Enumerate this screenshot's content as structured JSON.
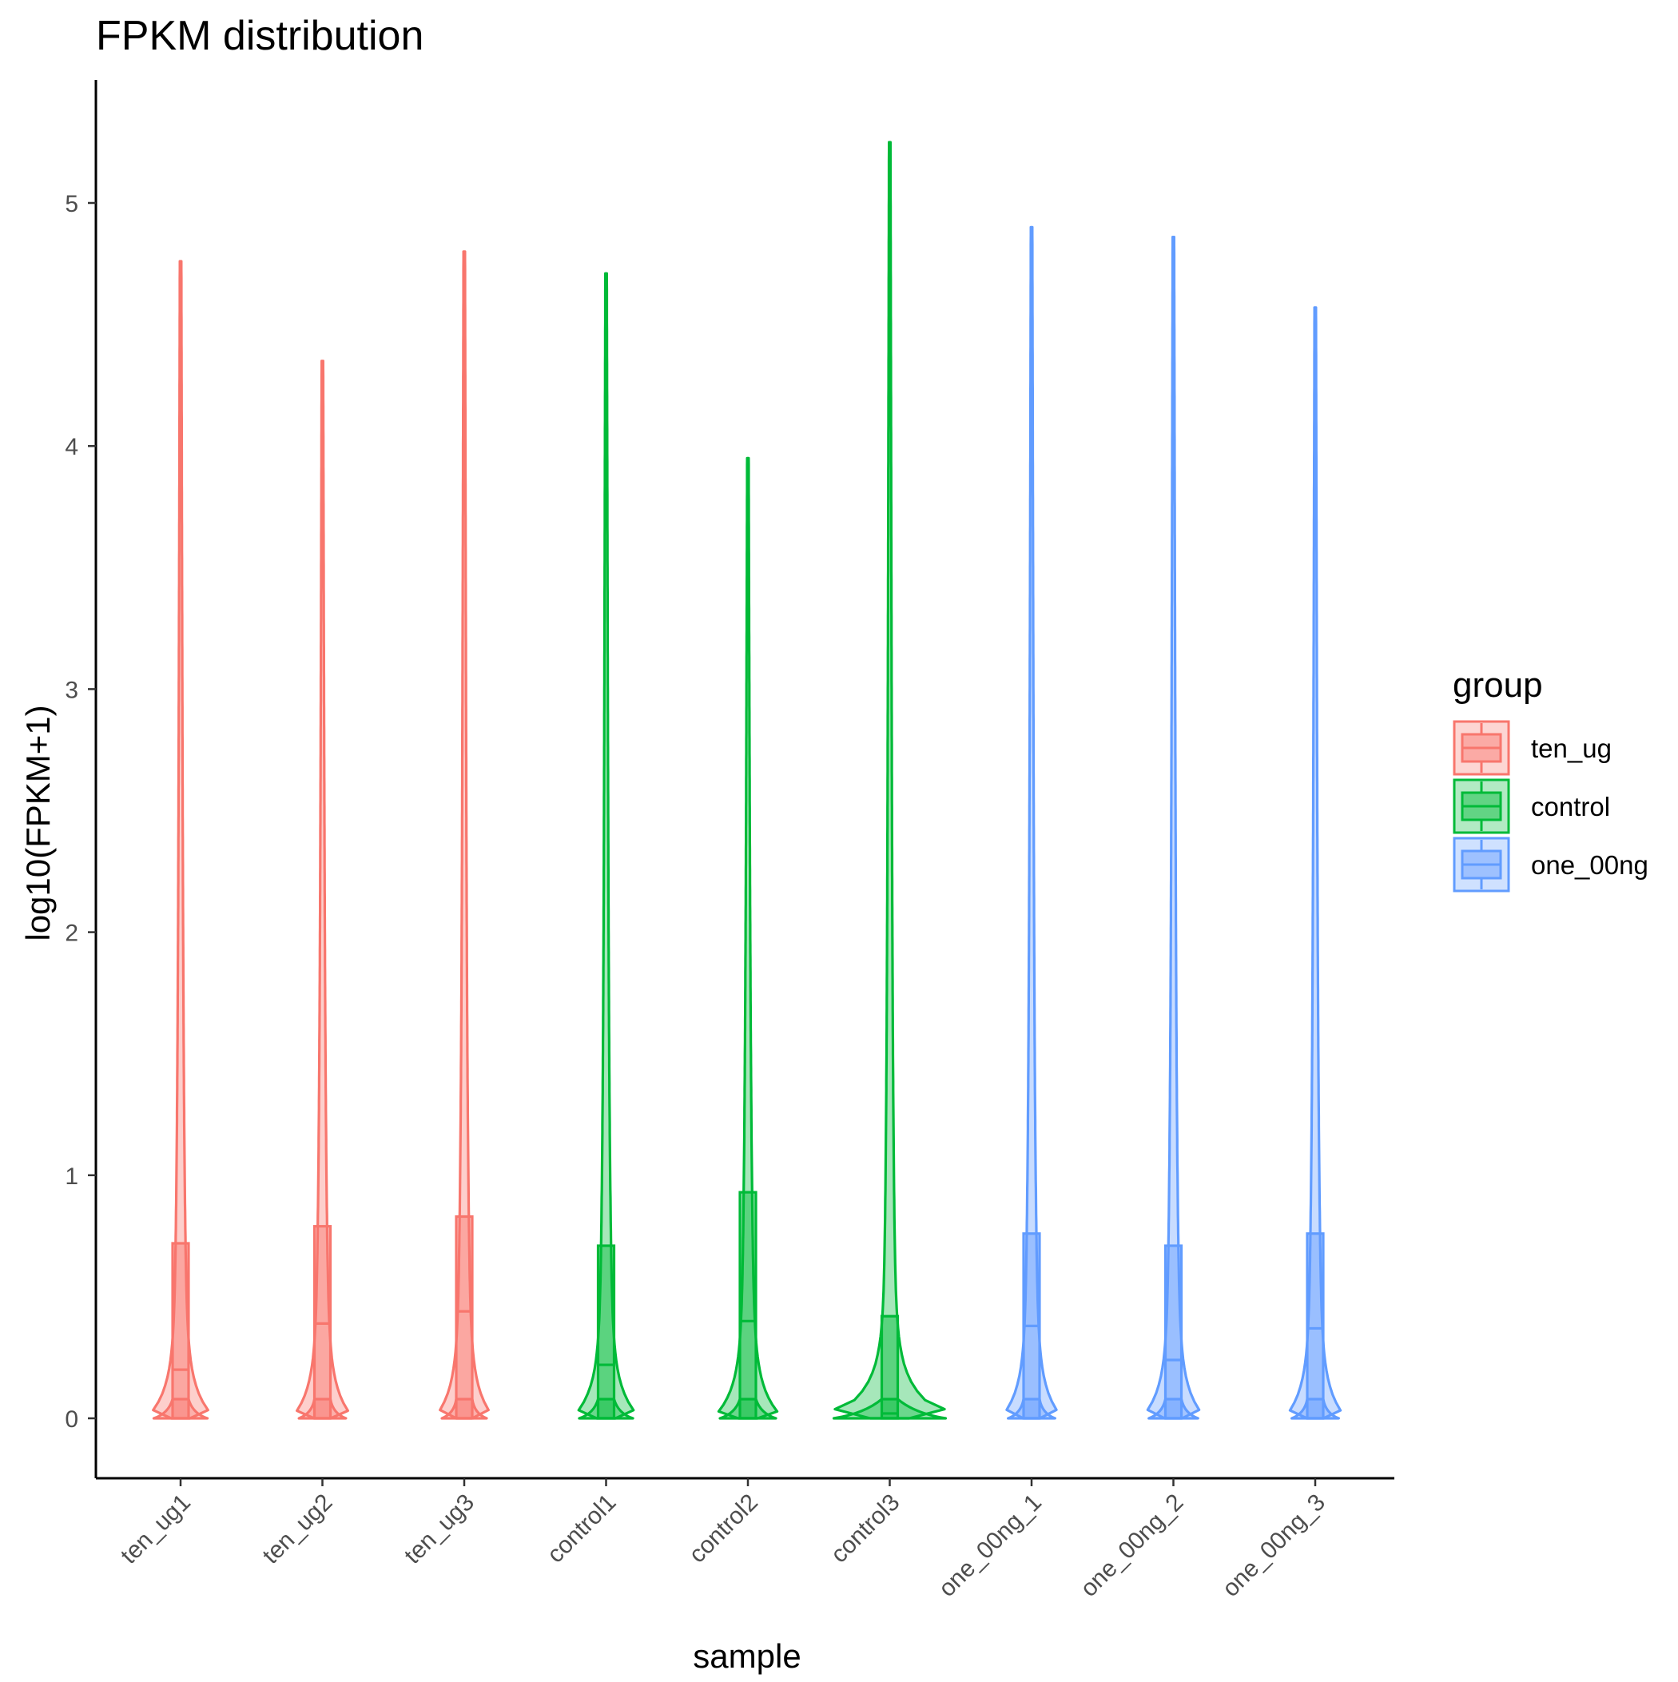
{
  "chart_data": {
    "type": "violin",
    "title": "FPKM distribution",
    "xlabel": "sample",
    "ylabel": "log10(FPKM+1)",
    "ylim": [
      -0.26,
      5.5
    ],
    "yticks": [
      0,
      1,
      2,
      3,
      4,
      5
    ],
    "grid": false,
    "legend_position": "right",
    "legend_title": "group",
    "groups": [
      {
        "name": "ten_ug",
        "color": "#F8766D"
      },
      {
        "name": "control",
        "color": "#00BA38"
      },
      {
        "name": "one_00ng",
        "color": "#619CFF"
      }
    ],
    "samples": [
      {
        "name": "ten_ug1",
        "group": "ten_ug",
        "max": 4.76,
        "q1": 0.0,
        "median": 0.2,
        "q3": 0.72,
        "base_halfwidth": 0.48
      },
      {
        "name": "ten_ug2",
        "group": "ten_ug",
        "max": 4.35,
        "q1": 0.0,
        "median": 0.39,
        "q3": 0.79,
        "base_halfwidth": 0.42
      },
      {
        "name": "ten_ug3",
        "group": "ten_ug",
        "max": 4.8,
        "q1": 0.0,
        "median": 0.44,
        "q3": 0.83,
        "base_halfwidth": 0.4
      },
      {
        "name": "control1",
        "group": "control",
        "max": 4.71,
        "q1": 0.0,
        "median": 0.22,
        "q3": 0.71,
        "base_halfwidth": 0.48
      },
      {
        "name": "control2",
        "group": "control",
        "max": 3.95,
        "q1": 0.0,
        "median": 0.4,
        "q3": 0.93,
        "base_halfwidth": 0.5
      },
      {
        "name": "control3",
        "group": "control",
        "max": 5.25,
        "q1": 0.0,
        "median": 0.02,
        "q3": 0.42,
        "base_halfwidth": 1.0
      },
      {
        "name": "one_00ng_1",
        "group": "one_00ng",
        "max": 4.9,
        "q1": 0.0,
        "median": 0.38,
        "q3": 0.76,
        "base_halfwidth": 0.42
      },
      {
        "name": "one_00ng_2",
        "group": "one_00ng",
        "max": 4.86,
        "q1": 0.0,
        "median": 0.24,
        "q3": 0.71,
        "base_halfwidth": 0.44
      },
      {
        "name": "one_00ng_3",
        "group": "one_00ng",
        "max": 4.57,
        "q1": 0.0,
        "median": 0.37,
        "q3": 0.76,
        "base_halfwidth": 0.42
      }
    ]
  }
}
